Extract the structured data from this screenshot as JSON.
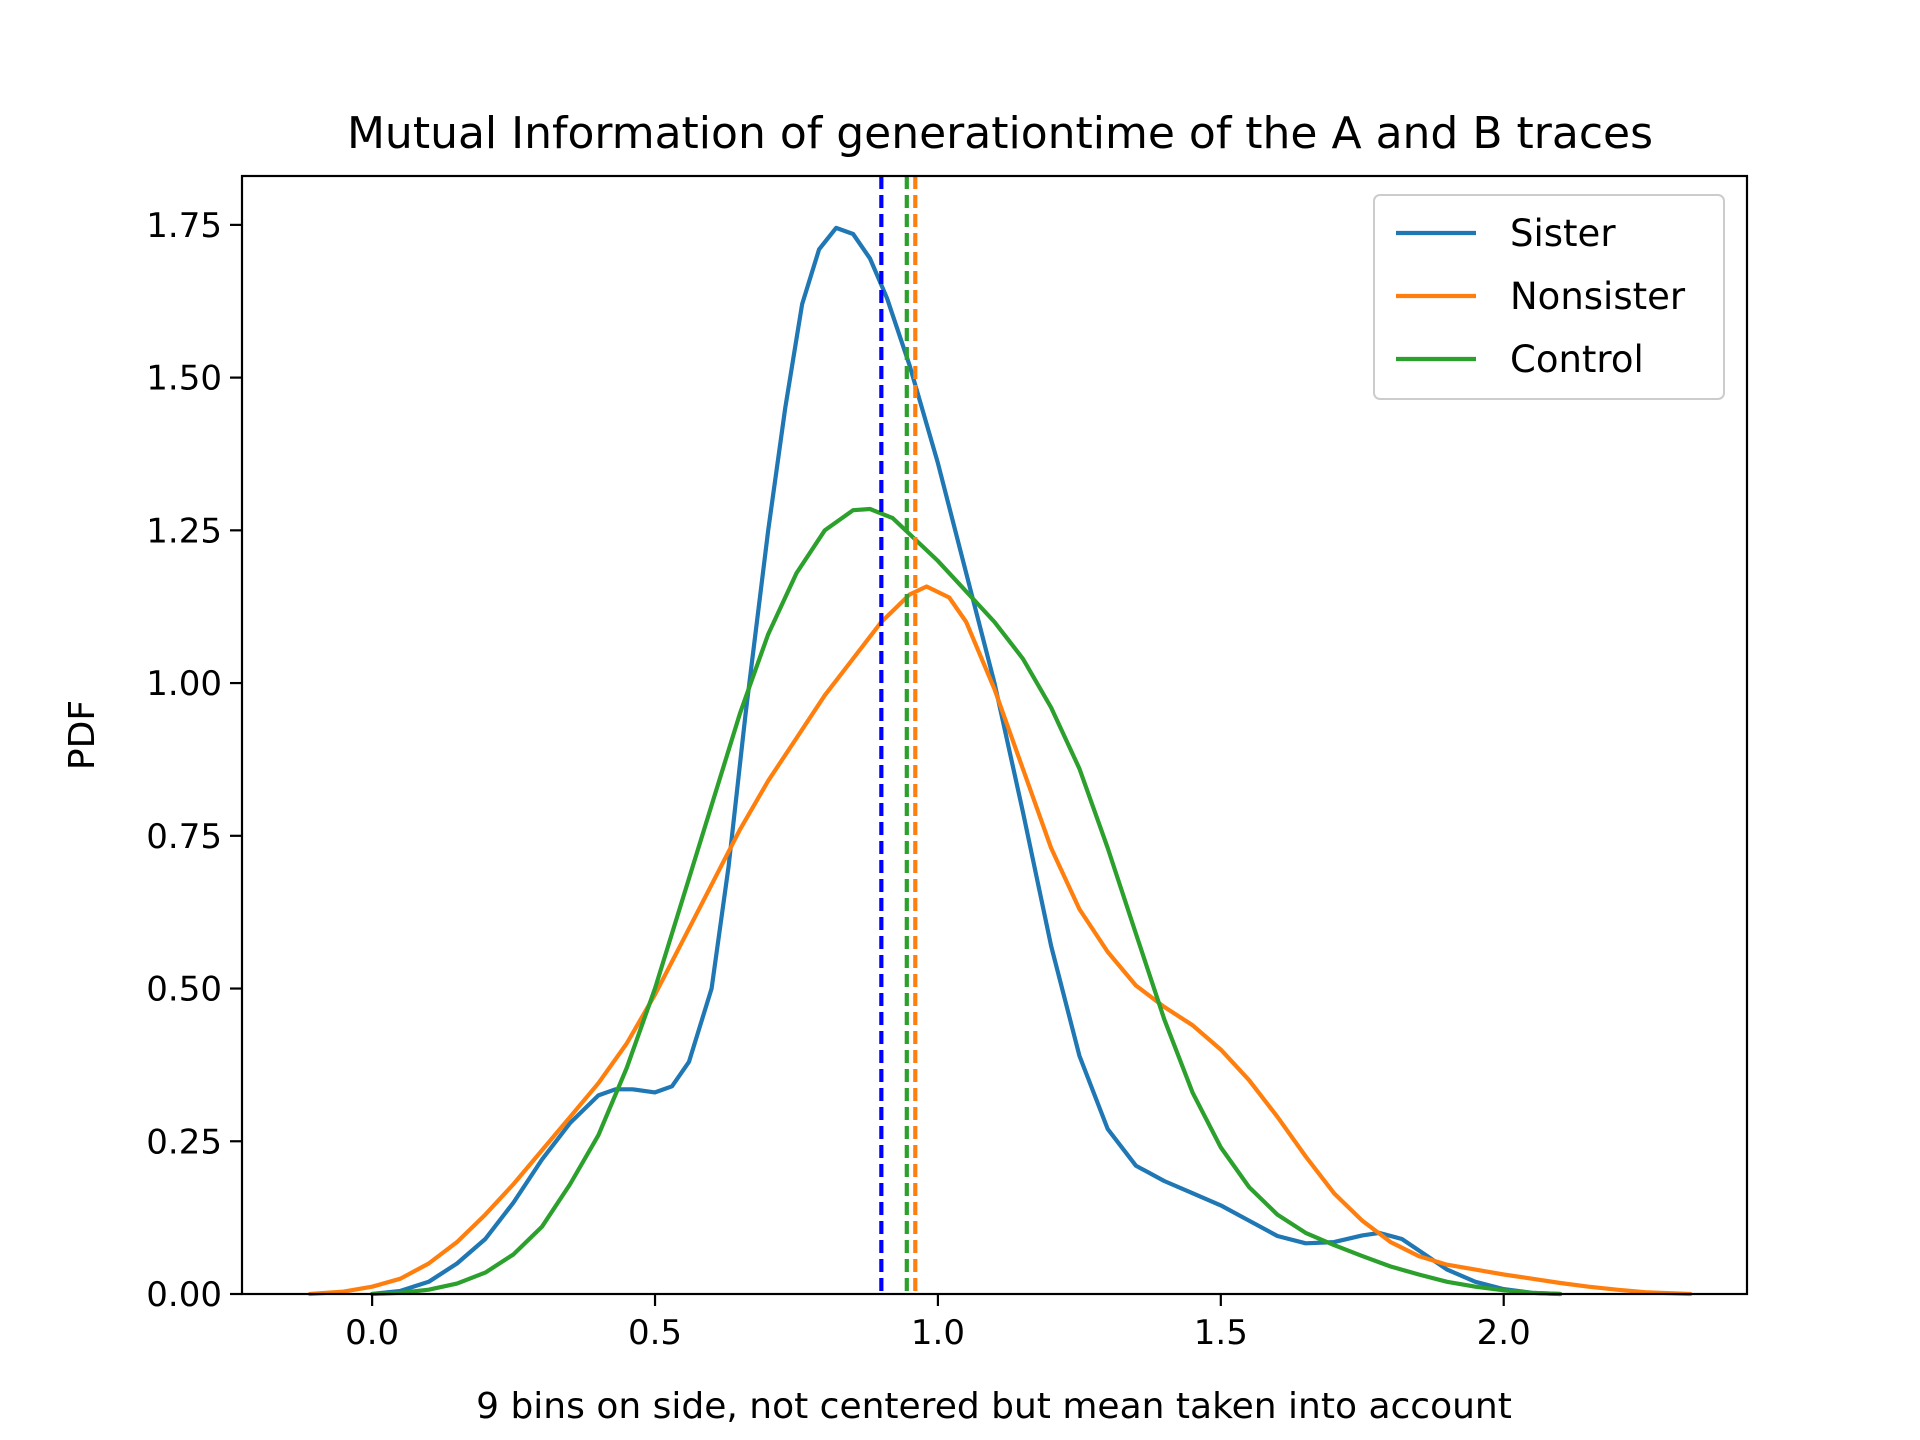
{
  "chart_data": {
    "type": "line",
    "title": "Mutual Information of generationtime of the A and B traces",
    "xlabel": "9 bins on side, not centered but mean taken into account",
    "ylabel": "PDF",
    "xlim": [
      -0.23,
      2.43
    ],
    "ylim": [
      0.0,
      1.83
    ],
    "x_ticks": [
      0.0,
      0.5,
      1.0,
      1.5,
      2.0
    ],
    "x_tick_labels": [
      "0.0",
      "0.5",
      "1.0",
      "1.5",
      "2.0"
    ],
    "y_ticks": [
      0.0,
      0.25,
      0.5,
      0.75,
      1.0,
      1.25,
      1.5,
      1.75
    ],
    "y_tick_labels": [
      "0.00",
      "0.25",
      "0.50",
      "0.75",
      "1.00",
      "1.25",
      "1.50",
      "1.75"
    ],
    "grid": false,
    "legend_position": "top-right",
    "series": [
      {
        "name": "Sister",
        "color": "#1f77b4",
        "points": [
          [
            0.0,
            0.0
          ],
          [
            0.05,
            0.005
          ],
          [
            0.1,
            0.02
          ],
          [
            0.15,
            0.05
          ],
          [
            0.2,
            0.09
          ],
          [
            0.25,
            0.15
          ],
          [
            0.3,
            0.22
          ],
          [
            0.35,
            0.28
          ],
          [
            0.4,
            0.325
          ],
          [
            0.43,
            0.335
          ],
          [
            0.46,
            0.335
          ],
          [
            0.5,
            0.33
          ],
          [
            0.53,
            0.34
          ],
          [
            0.56,
            0.38
          ],
          [
            0.6,
            0.5
          ],
          [
            0.63,
            0.7
          ],
          [
            0.66,
            0.95
          ],
          [
            0.7,
            1.25
          ],
          [
            0.73,
            1.45
          ],
          [
            0.76,
            1.62
          ],
          [
            0.79,
            1.71
          ],
          [
            0.82,
            1.745
          ],
          [
            0.85,
            1.735
          ],
          [
            0.88,
            1.695
          ],
          [
            0.91,
            1.63
          ],
          [
            0.95,
            1.52
          ],
          [
            1.0,
            1.36
          ],
          [
            1.05,
            1.18
          ],
          [
            1.1,
            1.0
          ],
          [
            1.15,
            0.79
          ],
          [
            1.2,
            0.57
          ],
          [
            1.25,
            0.39
          ],
          [
            1.3,
            0.27
          ],
          [
            1.35,
            0.21
          ],
          [
            1.4,
            0.185
          ],
          [
            1.45,
            0.165
          ],
          [
            1.5,
            0.145
          ],
          [
            1.55,
            0.12
          ],
          [
            1.6,
            0.095
          ],
          [
            1.65,
            0.083
          ],
          [
            1.7,
            0.085
          ],
          [
            1.75,
            0.096
          ],
          [
            1.78,
            0.1
          ],
          [
            1.82,
            0.09
          ],
          [
            1.86,
            0.065
          ],
          [
            1.9,
            0.04
          ],
          [
            1.95,
            0.02
          ],
          [
            2.0,
            0.008
          ],
          [
            2.05,
            0.002
          ],
          [
            2.1,
            0.0
          ]
        ]
      },
      {
        "name": "Nonsister",
        "color": "#ff7f0e",
        "points": [
          [
            -0.11,
            0.0
          ],
          [
            -0.05,
            0.004
          ],
          [
            0.0,
            0.012
          ],
          [
            0.05,
            0.025
          ],
          [
            0.1,
            0.05
          ],
          [
            0.15,
            0.085
          ],
          [
            0.2,
            0.13
          ],
          [
            0.25,
            0.18
          ],
          [
            0.3,
            0.235
          ],
          [
            0.35,
            0.29
          ],
          [
            0.4,
            0.345
          ],
          [
            0.45,
            0.41
          ],
          [
            0.5,
            0.49
          ],
          [
            0.55,
            0.58
          ],
          [
            0.6,
            0.67
          ],
          [
            0.65,
            0.76
          ],
          [
            0.7,
            0.84
          ],
          [
            0.75,
            0.91
          ],
          [
            0.8,
            0.98
          ],
          [
            0.85,
            1.04
          ],
          [
            0.9,
            1.1
          ],
          [
            0.95,
            1.145
          ],
          [
            0.98,
            1.158
          ],
          [
            1.02,
            1.14
          ],
          [
            1.05,
            1.1
          ],
          [
            1.1,
            0.99
          ],
          [
            1.15,
            0.86
          ],
          [
            1.2,
            0.73
          ],
          [
            1.25,
            0.63
          ],
          [
            1.3,
            0.56
          ],
          [
            1.35,
            0.505
          ],
          [
            1.4,
            0.47
          ],
          [
            1.45,
            0.44
          ],
          [
            1.5,
            0.4
          ],
          [
            1.55,
            0.35
          ],
          [
            1.6,
            0.29
          ],
          [
            1.65,
            0.225
          ],
          [
            1.7,
            0.165
          ],
          [
            1.75,
            0.12
          ],
          [
            1.8,
            0.085
          ],
          [
            1.85,
            0.062
          ],
          [
            1.9,
            0.048
          ],
          [
            1.95,
            0.04
          ],
          [
            2.0,
            0.032
          ],
          [
            2.05,
            0.025
          ],
          [
            2.1,
            0.018
          ],
          [
            2.15,
            0.012
          ],
          [
            2.2,
            0.007
          ],
          [
            2.25,
            0.003
          ],
          [
            2.33,
            0.0
          ]
        ]
      },
      {
        "name": "Control",
        "color": "#2ca02c",
        "points": [
          [
            0.0,
            0.0
          ],
          [
            0.05,
            0.002
          ],
          [
            0.1,
            0.007
          ],
          [
            0.15,
            0.017
          ],
          [
            0.2,
            0.035
          ],
          [
            0.25,
            0.065
          ],
          [
            0.3,
            0.11
          ],
          [
            0.35,
            0.18
          ],
          [
            0.4,
            0.26
          ],
          [
            0.45,
            0.37
          ],
          [
            0.5,
            0.5
          ],
          [
            0.55,
            0.65
          ],
          [
            0.6,
            0.8
          ],
          [
            0.65,
            0.95
          ],
          [
            0.7,
            1.08
          ],
          [
            0.75,
            1.18
          ],
          [
            0.8,
            1.25
          ],
          [
            0.85,
            1.283
          ],
          [
            0.88,
            1.285
          ],
          [
            0.92,
            1.27
          ],
          [
            0.96,
            1.235
          ],
          [
            1.0,
            1.2
          ],
          [
            1.05,
            1.15
          ],
          [
            1.1,
            1.1
          ],
          [
            1.15,
            1.04
          ],
          [
            1.2,
            0.96
          ],
          [
            1.25,
            0.86
          ],
          [
            1.3,
            0.73
          ],
          [
            1.35,
            0.59
          ],
          [
            1.4,
            0.45
          ],
          [
            1.45,
            0.33
          ],
          [
            1.5,
            0.24
          ],
          [
            1.55,
            0.175
          ],
          [
            1.6,
            0.13
          ],
          [
            1.65,
            0.1
          ],
          [
            1.7,
            0.08
          ],
          [
            1.75,
            0.062
          ],
          [
            1.8,
            0.045
          ],
          [
            1.85,
            0.032
          ],
          [
            1.9,
            0.02
          ],
          [
            1.95,
            0.012
          ],
          [
            2.0,
            0.006
          ],
          [
            2.05,
            0.002
          ],
          [
            2.1,
            0.0
          ]
        ]
      }
    ],
    "vlines": [
      {
        "x": 0.9,
        "color": "#0000ff",
        "style": "dashed"
      },
      {
        "x": 0.945,
        "color": "#2ca02c",
        "style": "dashed"
      },
      {
        "x": 0.96,
        "color": "#ff7f0e",
        "style": "dashed"
      }
    ]
  }
}
